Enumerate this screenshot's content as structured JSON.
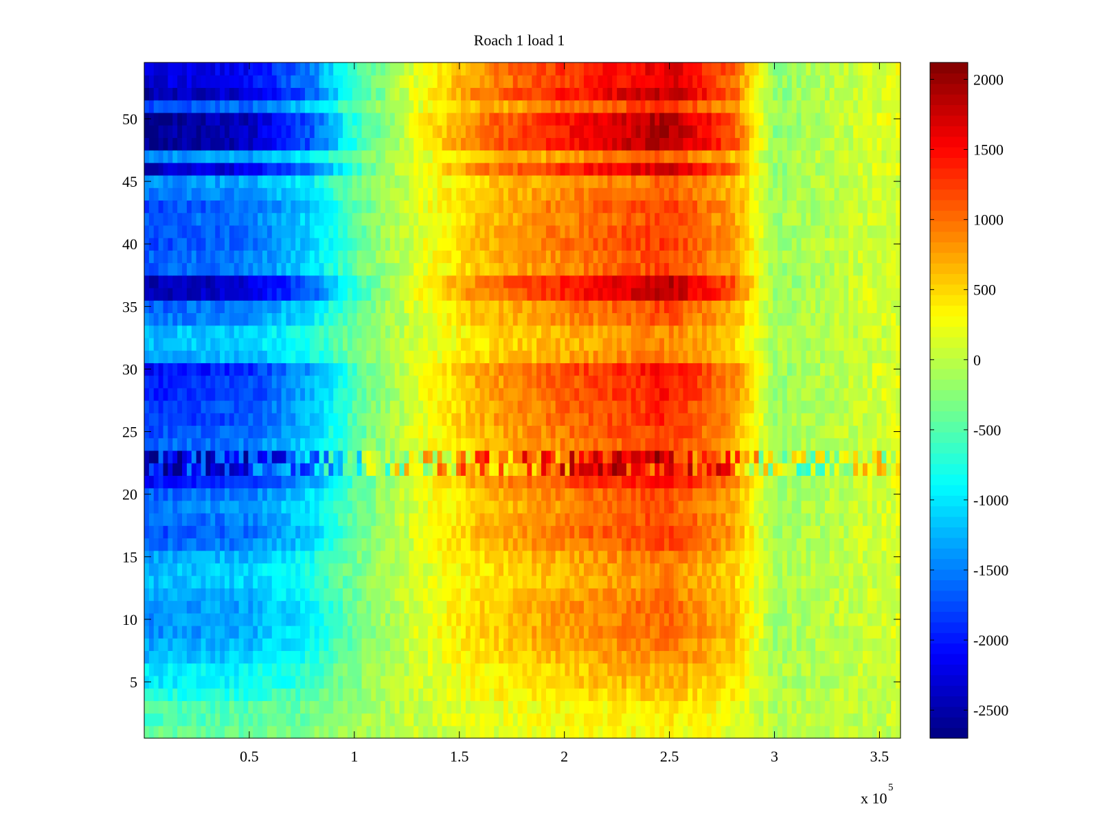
{
  "chart_data": {
    "type": "heatmap",
    "title": "Roach 1 load 1",
    "xlabel": "",
    "ylabel": "",
    "x_multiplier_label": "x 10",
    "x_multiplier_exponent": "5",
    "xlim": [
      0,
      360000
    ],
    "ylim": [
      0.5,
      54.5
    ],
    "x_ticks": [
      {
        "value": 50000,
        "label": "0.5"
      },
      {
        "value": 100000,
        "label": "1"
      },
      {
        "value": 150000,
        "label": "1.5"
      },
      {
        "value": 200000,
        "label": "2"
      },
      {
        "value": 250000,
        "label": "2.5"
      },
      {
        "value": 300000,
        "label": "3"
      },
      {
        "value": 350000,
        "label": "3.5"
      }
    ],
    "y_ticks": [
      {
        "value": 5,
        "label": "5"
      },
      {
        "value": 10,
        "label": "10"
      },
      {
        "value": 15,
        "label": "15"
      },
      {
        "value": 20,
        "label": "20"
      },
      {
        "value": 25,
        "label": "25"
      },
      {
        "value": 30,
        "label": "30"
      },
      {
        "value": 35,
        "label": "35"
      },
      {
        "value": 40,
        "label": "40"
      },
      {
        "value": 45,
        "label": "45"
      },
      {
        "value": 50,
        "label": "50"
      }
    ],
    "n_rows": 54,
    "colormap": "jet",
    "colorbar": {
      "clim": [
        -2700,
        2120
      ],
      "ticks": [
        {
          "value": 2000,
          "label": "2000"
        },
        {
          "value": 1500,
          "label": "1500"
        },
        {
          "value": 1000,
          "label": "1000"
        },
        {
          "value": 500,
          "label": "500"
        },
        {
          "value": 0,
          "label": "0"
        },
        {
          "value": -500,
          "label": "-500"
        },
        {
          "value": -1000,
          "label": "-1000"
        },
        {
          "value": -1500,
          "label": "-1500"
        },
        {
          "value": -2000,
          "label": "-2000"
        },
        {
          "value": -2500,
          "label": "-2500"
        }
      ]
    },
    "profile_x": [
      0,
      50000,
      80000,
      100000,
      130000,
      160000,
      200000,
      250000,
      280000,
      300000,
      330000,
      360000
    ],
    "profile_base": [
      -1100,
      -1000,
      -700,
      -300,
      100,
      400,
      600,
      800,
      500,
      -100,
      0,
      100
    ],
    "row_amplitude": [
      0.4,
      0.5,
      0.5,
      0.7,
      0.9,
      0.9,
      1.1,
      1.2,
      1.3,
      1.3,
      1.3,
      1.2,
      1.1,
      1.1,
      1.2,
      1.5,
      1.6,
      1.5,
      1.4,
      1.5,
      1.9,
      2.0,
      2.0,
      1.5,
      1.6,
      1.7,
      1.7,
      1.8,
      1.8,
      1.9,
      1.2,
      1.1,
      1.1,
      1.4,
      1.5,
      2.3,
      2.3,
      1.5,
      1.5,
      1.6,
      1.6,
      1.5,
      1.6,
      1.4,
      1.3,
      2.2,
      1.3,
      2.4,
      2.4,
      2.4,
      1.6,
      2.3,
      2.1,
      2.1
    ],
    "striped_rows": [
      22,
      23
    ]
  }
}
